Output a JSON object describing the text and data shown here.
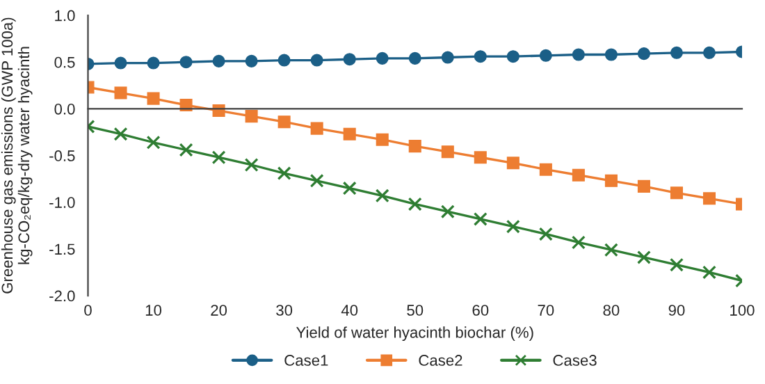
{
  "chart_data": {
    "type": "line",
    "xlabel": "Yield of water hyacinth biochar (%)",
    "ylabel": "Greenhouse gas emissions (GWP 100a)\nkg-CO₂eq/kg-dry water hyacinth",
    "x": [
      0,
      5,
      10,
      15,
      20,
      25,
      30,
      35,
      40,
      45,
      50,
      55,
      60,
      65,
      70,
      75,
      80,
      85,
      90,
      95,
      100
    ],
    "series": [
      {
        "name": "Case1",
        "color": "#1b5f87",
        "marker": "circle",
        "values": [
          0.48,
          0.49,
          0.49,
          0.5,
          0.51,
          0.51,
          0.52,
          0.52,
          0.53,
          0.54,
          0.54,
          0.55,
          0.56,
          0.56,
          0.57,
          0.58,
          0.58,
          0.59,
          0.6,
          0.6,
          0.61
        ]
      },
      {
        "name": "Case2",
        "color": "#ed7d31",
        "marker": "square",
        "values": [
          0.23,
          0.17,
          0.11,
          0.04,
          -0.02,
          -0.08,
          -0.14,
          -0.21,
          -0.27,
          -0.33,
          -0.4,
          -0.46,
          -0.52,
          -0.58,
          -0.65,
          -0.71,
          -0.77,
          -0.83,
          -0.9,
          -0.96,
          -1.02
        ]
      },
      {
        "name": "Case3",
        "color": "#2e7d32",
        "marker": "cross",
        "values": [
          -0.19,
          -0.27,
          -0.36,
          -0.44,
          -0.52,
          -0.6,
          -0.69,
          -0.77,
          -0.85,
          -0.93,
          -1.02,
          -1.1,
          -1.18,
          -1.26,
          -1.34,
          -1.43,
          -1.51,
          -1.59,
          -1.67,
          -1.75,
          -1.84
        ]
      }
    ],
    "xlim": [
      0,
      100
    ],
    "xticks": [
      0,
      10,
      20,
      30,
      40,
      50,
      60,
      70,
      80,
      90,
      100
    ],
    "ylim": [
      -2.0,
      1.0
    ],
    "yticks": [
      {
        "value": -2.0,
        "label": "-2.0"
      },
      {
        "value": -1.5,
        "label": "-1.5"
      },
      {
        "value": -1.0,
        "label": "-1.0"
      },
      {
        "value": -0.5,
        "label": "-0.5"
      },
      {
        "value": 0.0,
        "label": "0.0"
      },
      {
        "value": 0.5,
        "label": "0.5"
      },
      {
        "value": 1.0,
        "label": "1.0"
      }
    ],
    "legend": "bottom"
  }
}
